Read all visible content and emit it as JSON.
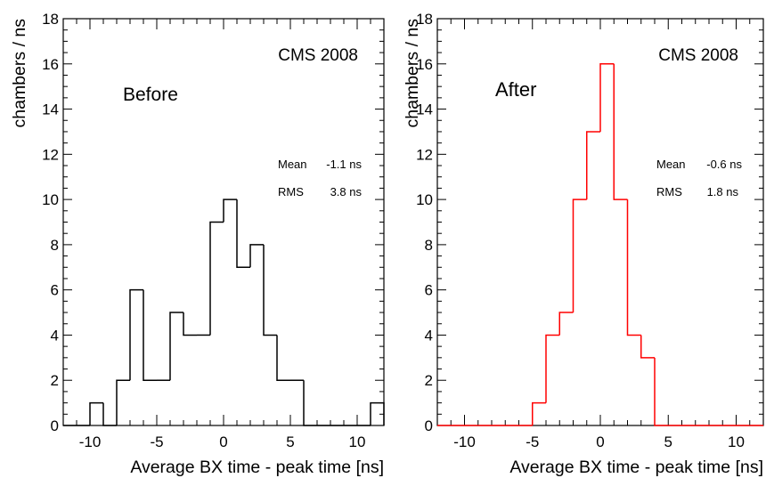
{
  "chart_data": [
    {
      "type": "bar",
      "style": "step-histogram",
      "title": "",
      "annotations": [
        "CMS 2008",
        "Before"
      ],
      "stats": {
        "mean_label": "Mean",
        "mean_value": "-1.1 ns",
        "rms_label": "RMS",
        "rms_value": "3.8 ns"
      },
      "xlabel": "Average BX time - peak time [ns]",
      "ylabel": "chambers / ns",
      "xlim": [
        -12,
        12
      ],
      "ylim": [
        0,
        18
      ],
      "xticks": [
        "-10",
        "-5",
        "0",
        "5",
        "10"
      ],
      "yticks": [
        "0",
        "2",
        "4",
        "6",
        "8",
        "10",
        "12",
        "14",
        "16",
        "18"
      ],
      "grid": false,
      "color": "#000000",
      "bin_edges": [
        -12,
        -11,
        -10,
        -9,
        -8,
        -7,
        -6,
        -5,
        -4,
        -3,
        -2,
        -1,
        0,
        1,
        2,
        3,
        4,
        5,
        6,
        7,
        8,
        9,
        10,
        11,
        12
      ],
      "values": [
        0,
        0,
        1,
        0,
        2,
        6,
        2,
        2,
        5,
        4,
        4,
        9,
        10,
        7,
        8,
        4,
        2,
        2,
        0,
        0,
        0,
        0,
        0,
        1
      ]
    },
    {
      "type": "bar",
      "style": "step-histogram",
      "title": "",
      "annotations": [
        "CMS 2008",
        "After"
      ],
      "stats": {
        "mean_label": "Mean",
        "mean_value": "-0.6 ns",
        "rms_label": "RMS",
        "rms_value": "1.8 ns"
      },
      "xlabel": "Average BX time - peak time [ns]",
      "ylabel": "chambers / ns",
      "xlim": [
        -12,
        12
      ],
      "ylim": [
        0,
        18
      ],
      "xticks": [
        "-10",
        "-5",
        "0",
        "5",
        "10"
      ],
      "yticks": [
        "0",
        "2",
        "4",
        "6",
        "8",
        "10",
        "12",
        "14",
        "16",
        "18"
      ],
      "grid": false,
      "color": "#ff0000",
      "bin_edges": [
        -12,
        -11,
        -10,
        -9,
        -8,
        -7,
        -6,
        -5,
        -4,
        -3,
        -2,
        -1,
        0,
        1,
        2,
        3,
        4,
        5,
        6,
        7,
        8,
        9,
        10,
        11,
        12
      ],
      "values": [
        0,
        0,
        0,
        0,
        0,
        0,
        0,
        1,
        4,
        5,
        10,
        13,
        16,
        10,
        4,
        3,
        0,
        0,
        0,
        0,
        0,
        0,
        0,
        0
      ]
    }
  ]
}
